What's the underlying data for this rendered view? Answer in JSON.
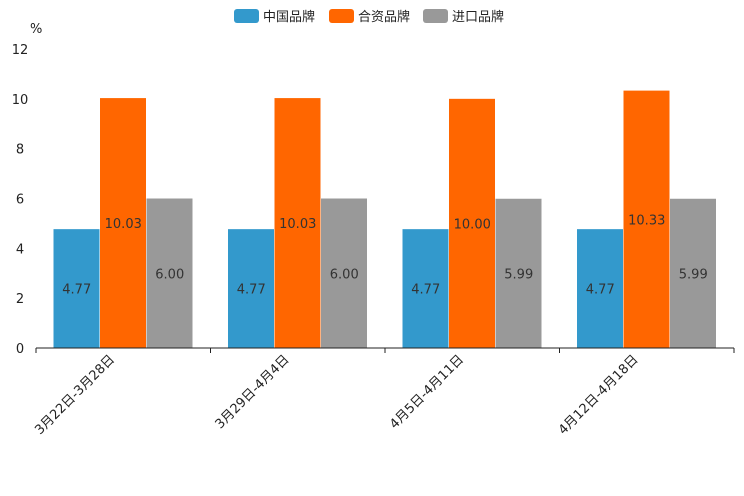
{
  "chart_data": {
    "type": "bar",
    "title": "",
    "unit_label": "%",
    "xlabel": "",
    "ylabel": "%",
    "ylim": [
      0,
      12
    ],
    "yticks": [
      0,
      2,
      4,
      6,
      8,
      10,
      12
    ],
    "categories": [
      "3月22日-3月28日",
      "3月29日-4月4日",
      "4月5日-4月11日",
      "4月12日-4月18日"
    ],
    "series": [
      {
        "name": "中国品牌",
        "color": "#3399cc",
        "values": [
          4.77,
          4.77,
          4.77,
          4.77
        ],
        "labels": [
          "4.77",
          "4.77",
          "4.77",
          "4.77"
        ]
      },
      {
        "name": "合资品牌",
        "color": "#ff6600",
        "values": [
          10.03,
          10.03,
          10.0,
          10.33
        ],
        "labels": [
          "10.03",
          "10.03",
          "10.00",
          "10.33"
        ]
      },
      {
        "name": "进口品牌",
        "color": "#999999",
        "values": [
          6.0,
          6.0,
          5.99,
          5.99
        ],
        "labels": [
          "6.00",
          "6.00",
          "5.99",
          "5.99"
        ]
      }
    ],
    "legend_position": "top-center",
    "grid": false
  }
}
